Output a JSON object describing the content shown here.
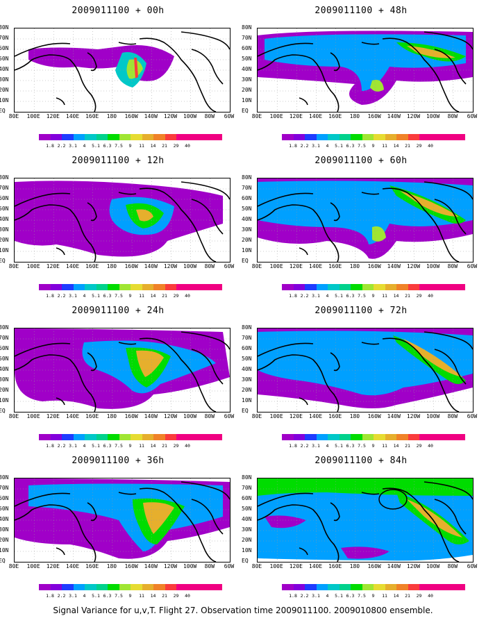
{
  "figure": {
    "caption": "Signal Variance for u,v,T. Flight 27. Observation time 2009011100. 2009010800 ensemble.",
    "lat_labels": [
      "80N",
      "70N",
      "60N",
      "50N",
      "40N",
      "30N",
      "20N",
      "10N",
      "EQ"
    ],
    "lon_labels": [
      "80E",
      "100E",
      "120E",
      "140E",
      "160E",
      "180",
      "160W",
      "140W",
      "120W",
      "100W",
      "80W",
      "60W"
    ],
    "colorbar": {
      "labels": [
        "1.8",
        "2.2",
        "3.1",
        "4",
        "5.1",
        "6.3",
        "7.5",
        "9",
        "11",
        "14",
        "21",
        "29",
        "40"
      ],
      "colors": [
        "#a000c8",
        "#8200dc",
        "#1e3cff",
        "#00a0ff",
        "#00c8c8",
        "#00d28c",
        "#00dc00",
        "#a0e632",
        "#e6dc32",
        "#e6af2d",
        "#f08228",
        "#fa3c3c",
        "#f00082"
      ]
    },
    "panels": [
      {
        "id": "00h",
        "title": "2009011100 + 00h",
        "circle": false
      },
      {
        "id": "48h",
        "title": "2009011100 + 48h",
        "circle": false
      },
      {
        "id": "12h",
        "title": "2009011100 + 12h",
        "circle": false
      },
      {
        "id": "60h",
        "title": "2009011100 + 60h",
        "circle": false
      },
      {
        "id": "24h",
        "title": "2009011100 + 24h",
        "circle": false
      },
      {
        "id": "72h",
        "title": "2009011100 + 72h",
        "circle": false
      },
      {
        "id": "36h",
        "title": "2009011100 + 36h",
        "circle": false
      },
      {
        "id": "84h",
        "title": "2009011100 + 84h",
        "circle": true
      }
    ]
  }
}
